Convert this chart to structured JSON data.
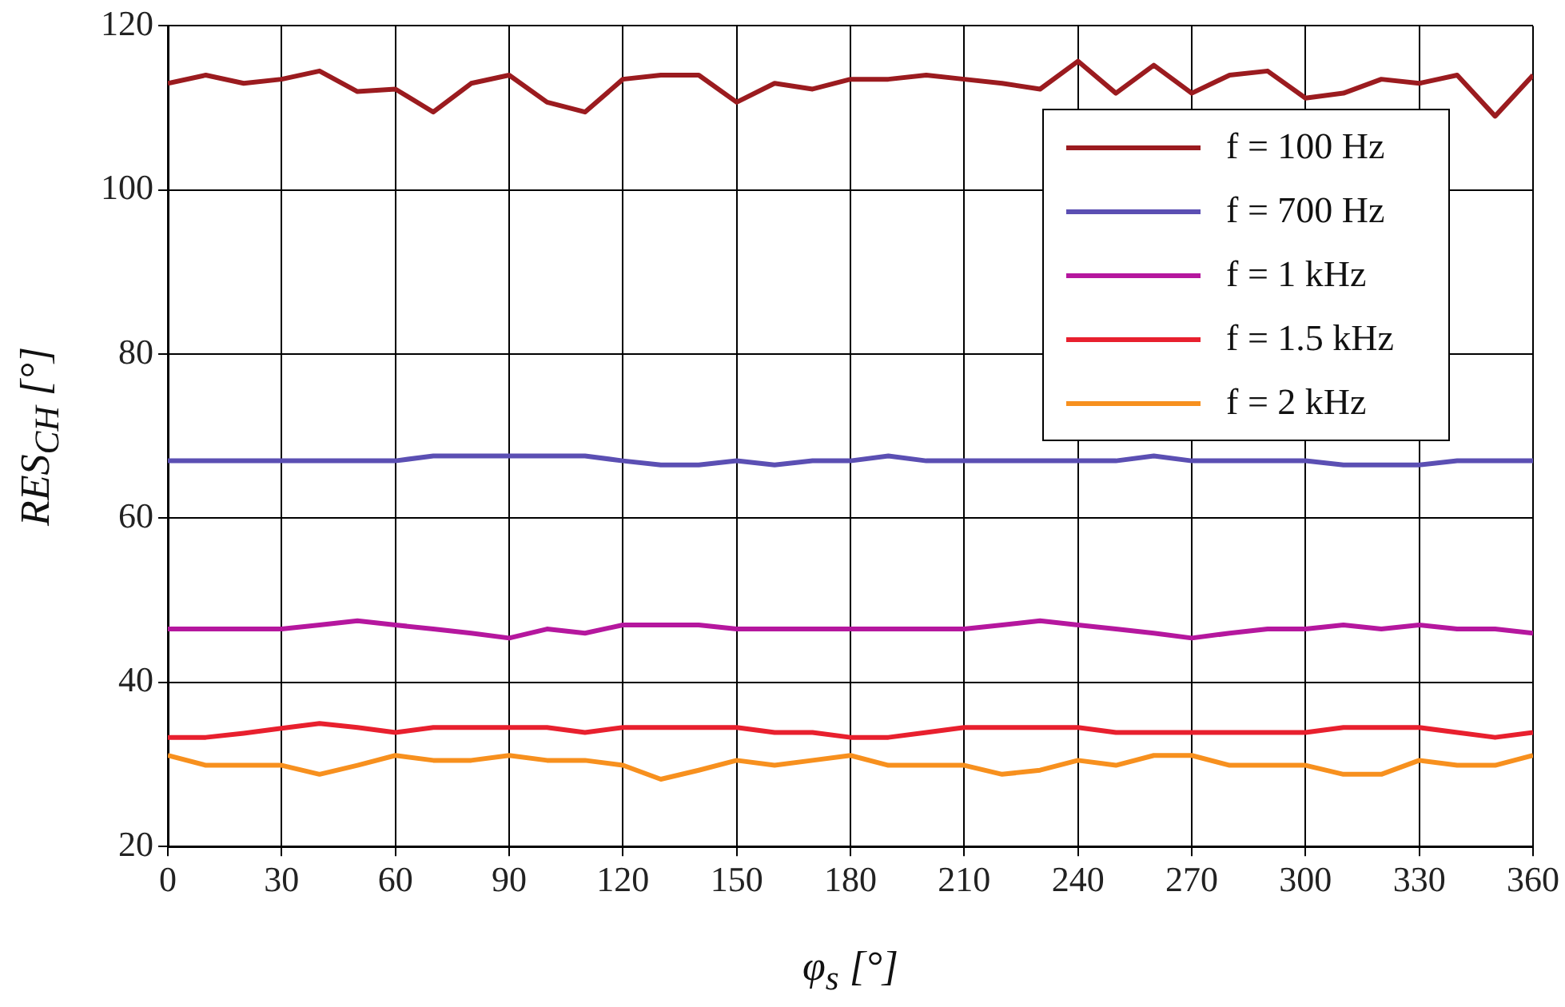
{
  "chart_data": {
    "type": "line",
    "xlabel": "φ$_{s}$ [°]",
    "ylabel": "RES$_{CH}$ [°]",
    "x": [
      0,
      10,
      20,
      30,
      40,
      50,
      60,
      70,
      80,
      90,
      100,
      110,
      120,
      130,
      140,
      150,
      160,
      170,
      180,
      190,
      200,
      210,
      220,
      230,
      240,
      250,
      260,
      270,
      280,
      290,
      300,
      310,
      320,
      330,
      340,
      350,
      360
    ],
    "series": [
      {
        "name": "f = 100 Hz",
        "color": "#9b1b1f",
        "values": [
          113,
          114,
          113,
          113.5,
          114.5,
          112,
          112.3,
          109.5,
          113,
          114,
          110.7,
          109.5,
          113.5,
          114,
          114,
          110.7,
          113,
          112.3,
          113.5,
          113.5,
          114,
          113.5,
          113,
          112.3,
          115.7,
          111.8,
          115.2,
          111.8,
          114,
          114.5,
          111.2,
          111.8,
          113.5,
          113,
          114,
          109,
          114
        ]
      },
      {
        "name": "f = 700 Hz",
        "color": "#5b4fb3",
        "values": [
          67,
          67,
          67,
          67,
          67,
          67,
          67,
          67.6,
          67.6,
          67.6,
          67.6,
          67.6,
          67,
          66.5,
          66.5,
          67,
          66.5,
          67,
          67,
          67.6,
          67,
          67,
          67,
          67,
          67,
          67,
          67.6,
          67,
          67,
          67,
          67,
          66.5,
          66.5,
          66.5,
          67,
          67,
          67
        ]
      },
      {
        "name": "f = 1 kHz",
        "color": "#b5179e",
        "values": [
          46.5,
          46.5,
          46.5,
          46.5,
          47,
          47.5,
          47,
          46.5,
          46,
          45.4,
          46.5,
          46,
          47,
          47,
          47,
          46.5,
          46.5,
          46.5,
          46.5,
          46.5,
          46.5,
          46.5,
          47,
          47.5,
          47,
          46.5,
          46,
          45.4,
          46,
          46.5,
          46.5,
          47,
          46.5,
          47,
          46.5,
          46.5,
          46
        ]
      },
      {
        "name": "f = 1.5 kHz",
        "color": "#e8202e",
        "values": [
          33.3,
          33.3,
          33.8,
          34.4,
          35,
          34.5,
          33.9,
          34.5,
          34.5,
          34.5,
          34.5,
          33.9,
          34.5,
          34.5,
          34.5,
          34.5,
          33.9,
          33.9,
          33.3,
          33.3,
          33.9,
          34.5,
          34.5,
          34.5,
          34.5,
          33.9,
          33.9,
          33.9,
          33.9,
          33.9,
          33.9,
          34.5,
          34.5,
          34.5,
          33.9,
          33.3,
          33.9
        ]
      },
      {
        "name": "f = 2 kHz",
        "color": "#f7901e",
        "values": [
          31.1,
          29.9,
          29.9,
          29.9,
          28.8,
          29.9,
          31.1,
          30.5,
          30.5,
          31.1,
          30.5,
          30.5,
          29.9,
          28.2,
          29.3,
          30.5,
          29.9,
          30.5,
          31.1,
          29.9,
          29.9,
          29.9,
          28.8,
          29.3,
          30.5,
          29.9,
          31.1,
          31.1,
          29.9,
          29.9,
          29.9,
          28.8,
          28.8,
          30.5,
          29.9,
          29.9,
          31.1
        ]
      }
    ],
    "xlim": [
      0,
      360
    ],
    "xticks": [
      0,
      30,
      60,
      90,
      120,
      150,
      180,
      210,
      240,
      270,
      300,
      330,
      360
    ],
    "ylim": [
      20,
      120
    ],
    "yticks": [
      20,
      40,
      60,
      80,
      100,
      120
    ],
    "grid": true,
    "legend": "top right",
    "marker": "none",
    "line_style": "solid"
  }
}
